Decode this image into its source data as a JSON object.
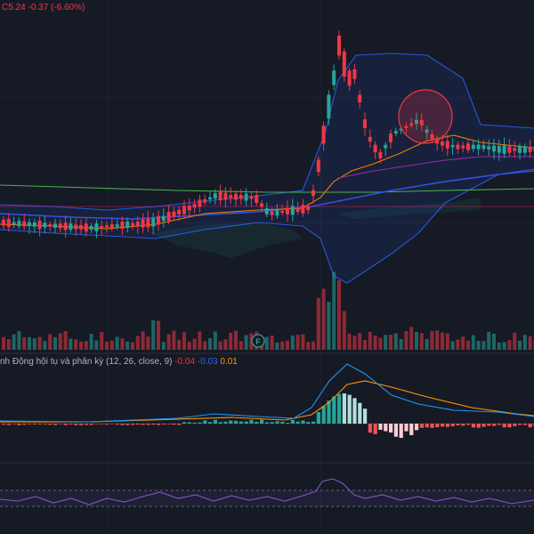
{
  "ohlc_legend": {
    "prefix": "C",
    "close": "5.24",
    "change": "-0.37",
    "change_pct": "(-6.60%)"
  },
  "macd_legend": {
    "title": "nh Động hội tụ và phân kỳ",
    "params": "(12, 26, close, 9)",
    "hist": "-0.04",
    "macd": "-0.03",
    "signal": "0.01"
  },
  "event_marker": {
    "label": "F"
  },
  "colors": {
    "background": "#161a25",
    "up": "#26a69a",
    "down": "#f23645",
    "bb_line": "#2962ff",
    "ma_long": "#4caf50",
    "ma_mid": "#3451e0",
    "ma_short": "#f57c00",
    "macd_line": "#2196f3",
    "signal_line": "#ff9800",
    "rsi_line": "#7e57c2"
  },
  "icons": {
    "event_marker": "earnings-flag-icon"
  }
}
